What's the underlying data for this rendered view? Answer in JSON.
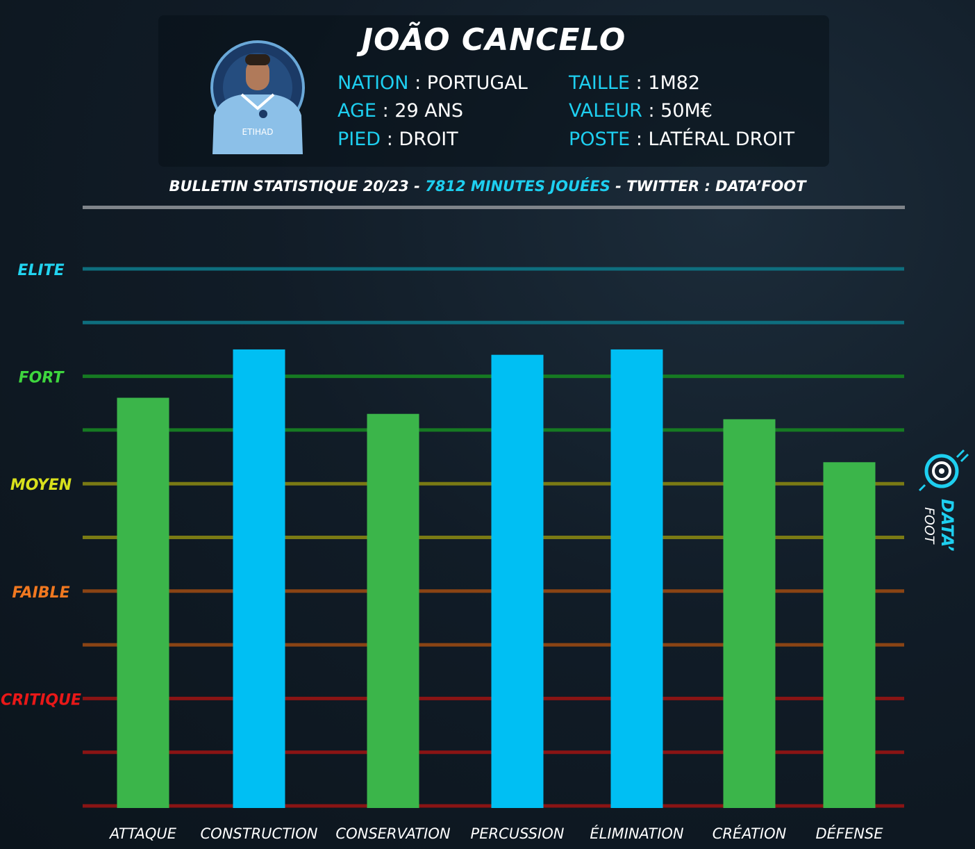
{
  "header": {
    "name": "JOÃO CANCELO",
    "info_left": [
      {
        "key": "NATION",
        "value": "PORTUGAL"
      },
      {
        "key": "AGE",
        "value": "29 ANS"
      },
      {
        "key": "PIED",
        "value": "DROIT"
      }
    ],
    "info_right": [
      {
        "key": "TAILLE",
        "value": "1M82"
      },
      {
        "key": "VALEUR",
        "value": "50M€"
      },
      {
        "key": "POSTE",
        "value": "LATÉRAL DROIT"
      }
    ],
    "separator": ":"
  },
  "subtitle": {
    "part1": "BULLETIN  STATISTIQUE 20/23 - ",
    "highlight": "7812 MINUTES JOUÉES",
    "part2": " -  TWITTER : DATA’FOOT"
  },
  "logo": {
    "line1": "DATA’",
    "line2": "FOOT"
  },
  "colors": {
    "green_bar": "#3bb54a",
    "blue_bar": "#00bff3",
    "elite": "#22d4f0",
    "fort": "#3ed63e",
    "moyen": "#d8e01c",
    "faible": "#f07820",
    "critique": "#e81818"
  },
  "chart_data": {
    "type": "bar",
    "title": "",
    "xlabel": "",
    "ylabel": "",
    "ylim": [
      0,
      10
    ],
    "grid": true,
    "categories": [
      "ATTAQUE",
      "CONSTRUCTION",
      "CONSERVATION",
      "PERCUSSION",
      "ÉLIMINATION",
      "CRÉATION",
      "DÉFENSE"
    ],
    "values": [
      7.6,
      8.5,
      7.3,
      8.4,
      8.5,
      7.2,
      6.4
    ],
    "bar_colors": [
      "#3bb54a",
      "#00bff3",
      "#3bb54a",
      "#00bff3",
      "#00bff3",
      "#3bb54a",
      "#3bb54a"
    ],
    "gridlines": [
      {
        "value": 10,
        "color": "#0e6e7e"
      },
      {
        "value": 9,
        "color": "#0e6e7e"
      },
      {
        "value": 8,
        "color": "#167a22"
      },
      {
        "value": 7,
        "color": "#167a22"
      },
      {
        "value": 6,
        "color": "#7a7a14"
      },
      {
        "value": 5,
        "color": "#7a7a14"
      },
      {
        "value": 4,
        "color": "#8a4414"
      },
      {
        "value": 3,
        "color": "#8a4414"
      },
      {
        "value": 2,
        "color": "#8a1414"
      },
      {
        "value": 1,
        "color": "#8a1414"
      }
    ],
    "levels": [
      {
        "label": "ELITE",
        "value": 10,
        "color": "#22d4f0"
      },
      {
        "label": "FORT",
        "value": 8,
        "color": "#3ed63e"
      },
      {
        "label": "MOYEN",
        "value": 6,
        "color": "#d8e01c"
      },
      {
        "label": "FAIBLE",
        "value": 4,
        "color": "#f07820"
      },
      {
        "label": "CRITIQUE",
        "value": 2,
        "color": "#e81818"
      }
    ]
  }
}
